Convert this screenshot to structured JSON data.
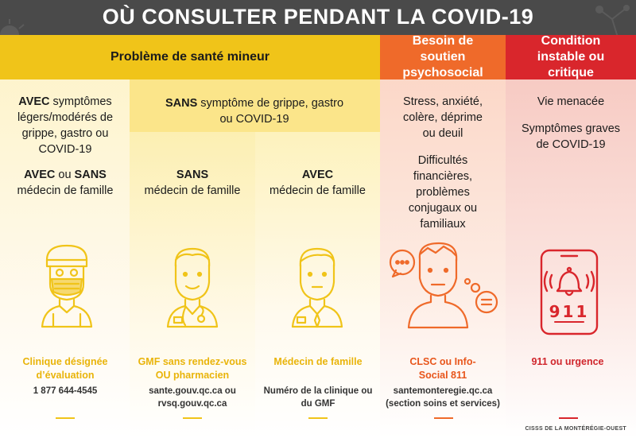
{
  "title": "OÙ CONSULTER PENDANT LA COVID-19",
  "headers": {
    "minor": "Problème de santé mineur",
    "psycho": "Besoin de soutien psychosocial",
    "critical": "Condition instable ou critique"
  },
  "sans_grippe": {
    "prefix": "SANS",
    "rest": " symptôme de grippe, gastro ou COVID-19"
  },
  "col1": {
    "avec": "AVEC",
    "symptoms": " symptômes légers/modérés de grippe, gastro ou COVID-19",
    "avec2": "AVEC",
    "ou": " ou ",
    "sans2": "SANS",
    "medecin": "médecin de famille",
    "label": "Clinique désignée d’évaluation",
    "sub": "1 877 644-4545"
  },
  "col2": {
    "sans": "SANS",
    "medecin": "médecin de famille",
    "label": "GMF sans rendez-vous OU pharmacien",
    "sub": "sante.gouv.qc.ca ou rvsq.gouv.qc.ca"
  },
  "col3": {
    "avec": "AVEC",
    "medecin": "médecin de famille",
    "label": "Médecin de famille",
    "sub": "Numéro de la clinique ou du GMF"
  },
  "col4": {
    "t1": "Stress, anxiété, colère, déprime ou deuil",
    "t2": "Difficultés financières, problèmes conjugaux ou familiaux",
    "label": "CLSC ou Info-Social 811",
    "sub": "santemonteregie.qc.ca (section soins et services)"
  },
  "col5": {
    "t1": "Vie menacée",
    "t2": "Symptômes graves de COVID-19",
    "phone_number": "911",
    "label": "911 ou urgence"
  },
  "footer": "CISSS DE LA MONTÉRÉGIE-OUEST",
  "colors": {
    "yellow": "#f0c419",
    "yellow_light": "#fbe98a",
    "yellow_label": "#e9b40a",
    "orange": "#ef6a2a",
    "orange_text": "#e8561c",
    "red": "#d9262c",
    "red_text": "#d0262c",
    "dark": "#4a4a4a"
  }
}
